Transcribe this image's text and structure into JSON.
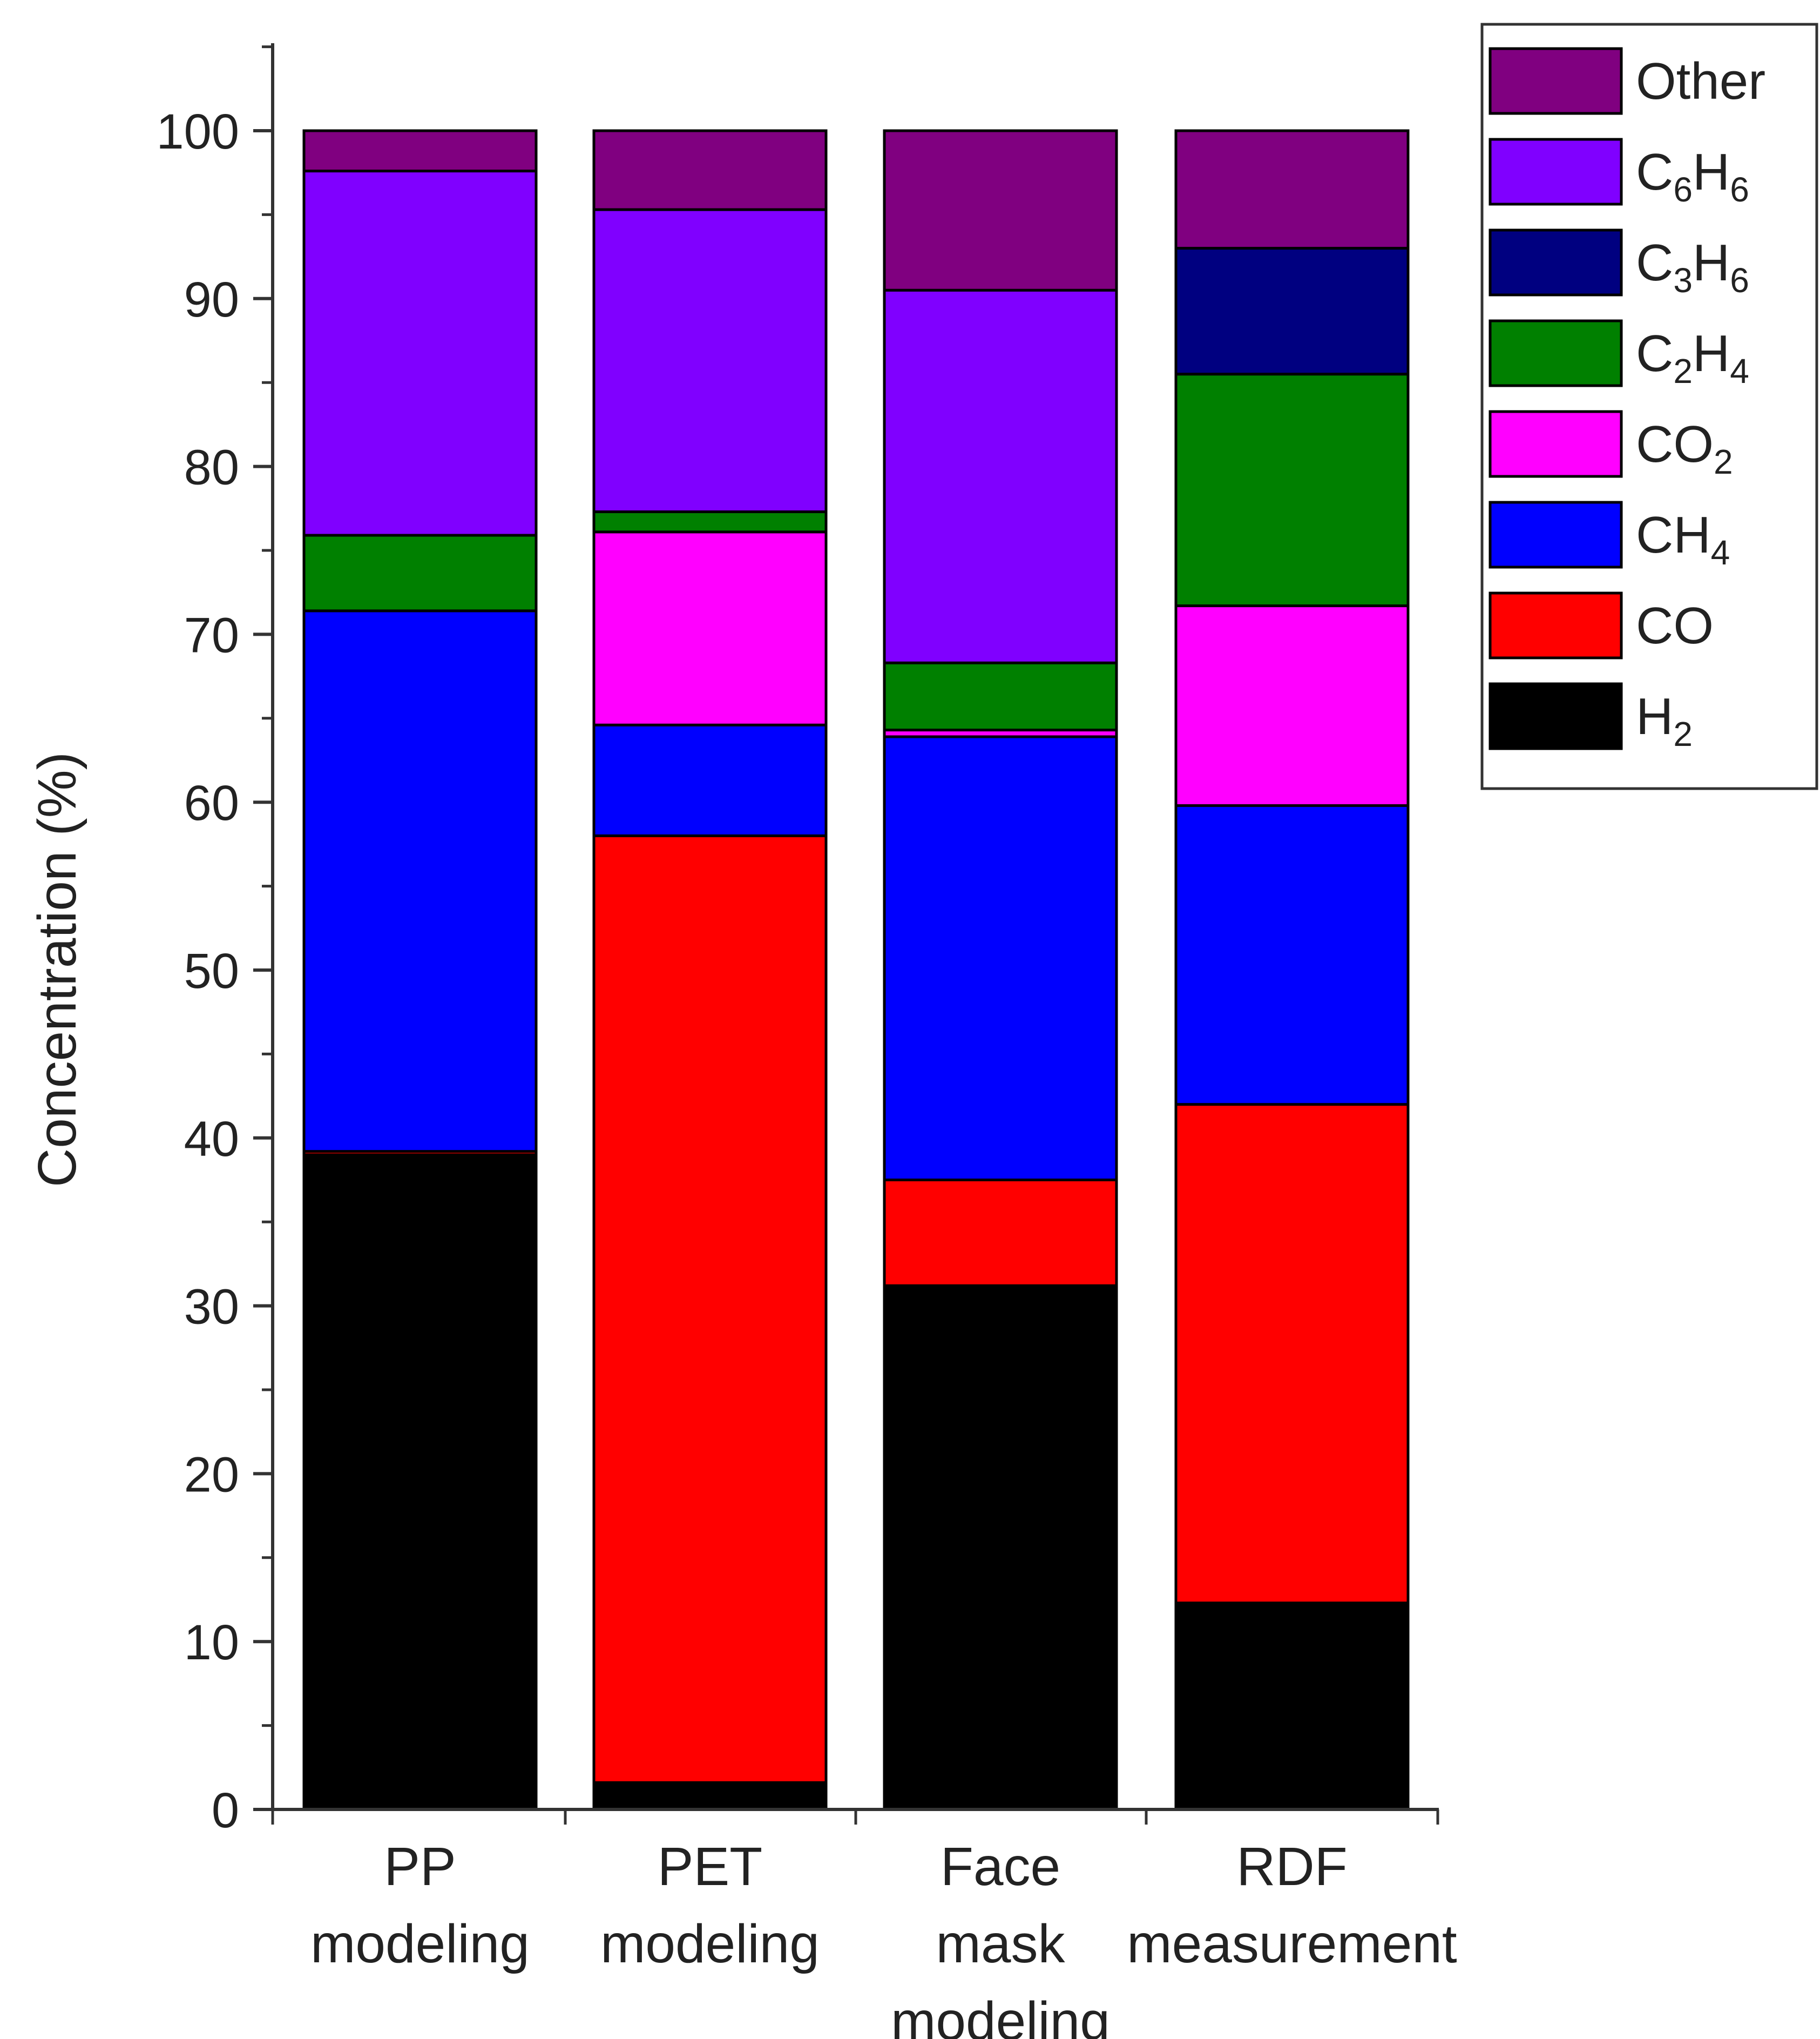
{
  "chart_data": {
    "type": "bar",
    "stacked": true,
    "title": "",
    "xlabel": "",
    "ylabel": "Concentration (%)",
    "ylim": [
      0,
      105
    ],
    "yticks": [
      0,
      10,
      20,
      30,
      40,
      50,
      60,
      70,
      80,
      90,
      100
    ],
    "grid": false,
    "legend_position": "top-right",
    "categories": [
      [
        "PP",
        "modeling"
      ],
      [
        "PET",
        "modeling"
      ],
      [
        "Face",
        "mask",
        "modeling"
      ],
      [
        "RDF",
        "measurement"
      ]
    ],
    "series": [
      {
        "name": "H2",
        "label_main": "H",
        "label_sub": "2",
        "color": "#000000",
        "values": [
          39.0,
          1.6,
          31.2,
          12.3
        ]
      },
      {
        "name": "CO",
        "label_main": "CO",
        "label_sub": "",
        "color": "#ff0000",
        "values": [
          0.2,
          56.4,
          6.3,
          29.7
        ]
      },
      {
        "name": "CH4",
        "label_main": "CH",
        "label_sub": "4",
        "color": "#0000ff",
        "values": [
          32.2,
          6.6,
          26.4,
          17.8
        ]
      },
      {
        "name": "CO2",
        "label_main": "CO",
        "label_sub": "2",
        "color": "#ff00ff",
        "values": [
          0.0,
          11.5,
          0.4,
          11.9
        ]
      },
      {
        "name": "C2H4",
        "label_main": "C2H4",
        "label_sub": "",
        "color": "#008000",
        "values": [
          4.5,
          1.2,
          4.0,
          13.8
        ]
      },
      {
        "name": "C3H6",
        "label_main": "C3H6",
        "label_sub": "",
        "color": "#000080",
        "values": [
          0.0,
          0.0,
          0.0,
          7.5
        ]
      },
      {
        "name": "C6H6",
        "label_main": "C6H6",
        "label_sub": "",
        "color": "#8000ff",
        "values": [
          21.7,
          18.0,
          22.2,
          0.0
        ]
      },
      {
        "name": "Other",
        "label_main": "Other",
        "label_sub": "",
        "color": "#800080",
        "values": [
          2.4,
          4.7,
          9.5,
          7.0
        ]
      }
    ]
  }
}
